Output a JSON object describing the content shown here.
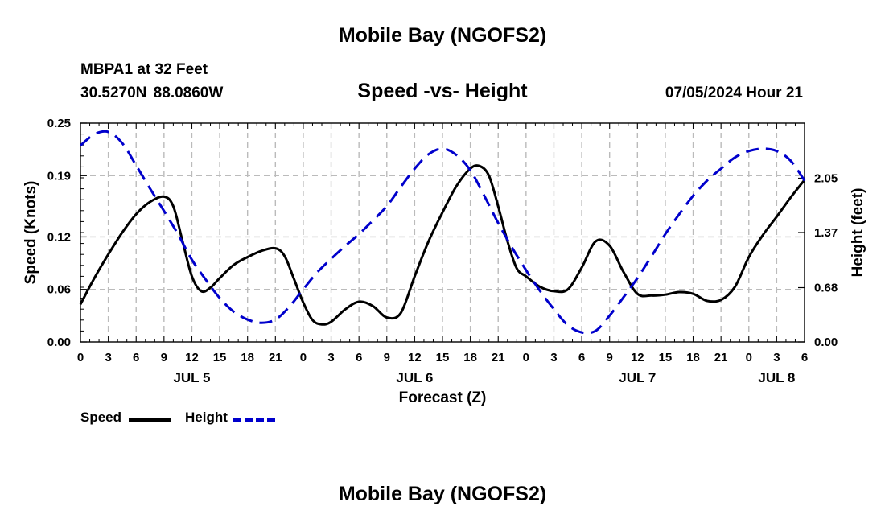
{
  "page": {
    "title": "Mobile Bay (NGOFS2)",
    "footer_title": "Mobile Bay (NGOFS2)",
    "station": "MBPA1 at 32 Feet",
    "coords": "30.5270N  88.0860W",
    "subtitle": "Speed -vs- Height",
    "timestamp": "07/05/2024 Hour 21"
  },
  "legend": {
    "speed_label": "Speed",
    "height_label": "Height"
  },
  "colors": {
    "speed": "#000000",
    "height": "#0000cc",
    "grid": "#bbbbbb"
  },
  "chart_data": {
    "type": "line",
    "title": "Speed -vs- Height",
    "xlabel": "Forecast (Z)",
    "ylabel": "Speed (Knots)",
    "y2label": "Height (feet)",
    "xlim": [
      0,
      78
    ],
    "ylim": [
      0,
      0.25
    ],
    "y2lim": [
      0,
      2.74
    ],
    "x_ticks": [
      0,
      3,
      6,
      9,
      12,
      15,
      18,
      21,
      24,
      27,
      30,
      33,
      36,
      39,
      42,
      45,
      48,
      51,
      54,
      57,
      60,
      63,
      66,
      69,
      72,
      75,
      78
    ],
    "x_tick_labels": [
      "0",
      "3",
      "6",
      "9",
      "12",
      "15",
      "18",
      "21",
      "0",
      "3",
      "6",
      "9",
      "12",
      "15",
      "18",
      "21",
      "0",
      "3",
      "6",
      "9",
      "12",
      "15",
      "18",
      "21",
      "0",
      "3",
      "6"
    ],
    "date_labels": [
      {
        "x": 12,
        "label": "JUL 5"
      },
      {
        "x": 36,
        "label": "JUL 6"
      },
      {
        "x": 60,
        "label": "JUL 7"
      },
      {
        "x": 75,
        "label": "JUL 8"
      }
    ],
    "y_ticks": [
      0.0,
      0.06,
      0.12,
      0.19,
      0.25
    ],
    "y_tick_labels": [
      "0.00",
      "0.06",
      "0.12",
      "0.19",
      "0.25"
    ],
    "y2_ticks": [
      0.0,
      0.68,
      1.37,
      2.05
    ],
    "y2_tick_labels": [
      "0.00",
      "0.68",
      "1.37",
      "2.05"
    ],
    "grid": true,
    "series": [
      {
        "name": "Speed",
        "axis": "left",
        "style": "solid",
        "x": [
          0,
          1.5,
          3,
          4.5,
          6,
          7.5,
          9,
          10,
          11,
          12,
          13,
          14,
          15,
          16.5,
          18,
          19.5,
          21,
          22,
          23,
          24,
          25,
          26,
          27,
          28.5,
          30,
          31.5,
          33,
          34.5,
          36,
          37.5,
          39,
          40.5,
          42,
          43,
          44,
          45,
          46,
          47,
          48,
          49.5,
          51,
          52.5,
          54,
          55.5,
          57,
          58.5,
          60,
          61.5,
          63,
          64.5,
          66,
          67.5,
          69,
          70.5,
          72,
          73.5,
          75,
          76.5,
          78
        ],
        "values": [
          0.043,
          0.073,
          0.1,
          0.125,
          0.146,
          0.16,
          0.166,
          0.155,
          0.115,
          0.075,
          0.058,
          0.062,
          0.073,
          0.088,
          0.097,
          0.104,
          0.107,
          0.098,
          0.072,
          0.045,
          0.025,
          0.02,
          0.023,
          0.037,
          0.046,
          0.041,
          0.028,
          0.033,
          0.075,
          0.115,
          0.148,
          0.178,
          0.198,
          0.201,
          0.19,
          0.155,
          0.115,
          0.084,
          0.075,
          0.063,
          0.058,
          0.06,
          0.085,
          0.115,
          0.11,
          0.08,
          0.055,
          0.053,
          0.054,
          0.057,
          0.055,
          0.047,
          0.048,
          0.063,
          0.097,
          0.122,
          0.143,
          0.165,
          0.185
        ]
      },
      {
        "name": "Height",
        "axis": "right",
        "style": "dashed",
        "x": [
          0,
          1.5,
          3,
          4.5,
          6,
          7.5,
          9,
          10.5,
          12,
          13.5,
          15,
          16.5,
          18,
          19.5,
          21,
          22.5,
          24,
          25.5,
          27,
          28.5,
          30,
          31.5,
          33,
          34.5,
          36,
          37.5,
          39,
          40.5,
          42,
          43.5,
          45,
          46.5,
          48,
          49.5,
          51,
          52.5,
          54,
          55.5,
          57,
          58.5,
          60,
          61.5,
          63,
          64.5,
          66,
          67.5,
          69,
          70.5,
          72,
          73.5,
          75,
          76.5,
          78
        ],
        "values": [
          2.46,
          2.6,
          2.63,
          2.49,
          2.21,
          1.92,
          1.64,
          1.35,
          1.03,
          0.78,
          0.55,
          0.38,
          0.28,
          0.24,
          0.28,
          0.44,
          0.66,
          0.87,
          1.04,
          1.2,
          1.35,
          1.52,
          1.7,
          1.94,
          2.17,
          2.35,
          2.42,
          2.34,
          2.15,
          1.83,
          1.49,
          1.18,
          0.9,
          0.64,
          0.41,
          0.21,
          0.12,
          0.14,
          0.33,
          0.56,
          0.8,
          1.07,
          1.35,
          1.6,
          1.83,
          2.02,
          2.17,
          2.31,
          2.39,
          2.42,
          2.39,
          2.27,
          2.02
        ]
      }
    ]
  }
}
